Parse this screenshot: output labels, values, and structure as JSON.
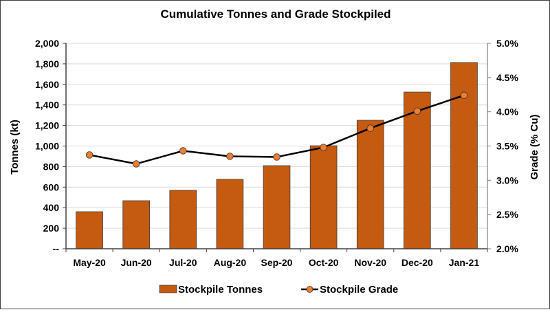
{
  "chart_data": {
    "type": "bar",
    "title": "Cumulative Tonnes and Grade Stockpiled",
    "categories": [
      "May-20",
      "Jun-20",
      "Jul-20",
      "Aug-20",
      "Sep-20",
      "Oct-20",
      "Nov-20",
      "Dec-20",
      "Jan-21"
    ],
    "series": [
      {
        "name": "Stockpile Tonnes",
        "type": "bar",
        "axis": "left",
        "color": "#C55A11",
        "values": [
          361,
          468,
          569,
          676,
          809,
          1003,
          1251,
          1525,
          1813
        ]
      },
      {
        "name": "Stockpile Grade",
        "type": "line",
        "axis": "right",
        "color": "#000000",
        "marker_color": "#ED7D31",
        "values": [
          3.37,
          3.24,
          3.43,
          3.35,
          3.34,
          3.48,
          3.76,
          4.01,
          4.24
        ]
      }
    ],
    "ylabel": "Tonnes (kt)",
    "ylim": [
      0,
      2000
    ],
    "yticks": [
      0,
      200,
      400,
      600,
      800,
      1000,
      1200,
      1400,
      1600,
      1800,
      2000
    ],
    "ytick_labels": [
      "--",
      "200",
      "400",
      "600",
      "800",
      "1,000",
      "1,200",
      "1,400",
      "1,600",
      "1,800",
      "2,000"
    ],
    "y2label": "Grade (% Cu)",
    "y2lim": [
      2.0,
      5.0
    ],
    "y2ticks": [
      2.0,
      2.5,
      3.0,
      3.5,
      4.0,
      4.5,
      5.0
    ],
    "y2tick_labels": [
      "2.0%",
      "2.5%",
      "3.0%",
      "3.5%",
      "4.0%",
      "4.5%",
      "5.0%"
    ],
    "grid": true,
    "legend": {
      "position": "bottom",
      "entries": [
        "Stockpile Tonnes",
        "Stockpile Grade"
      ]
    }
  }
}
